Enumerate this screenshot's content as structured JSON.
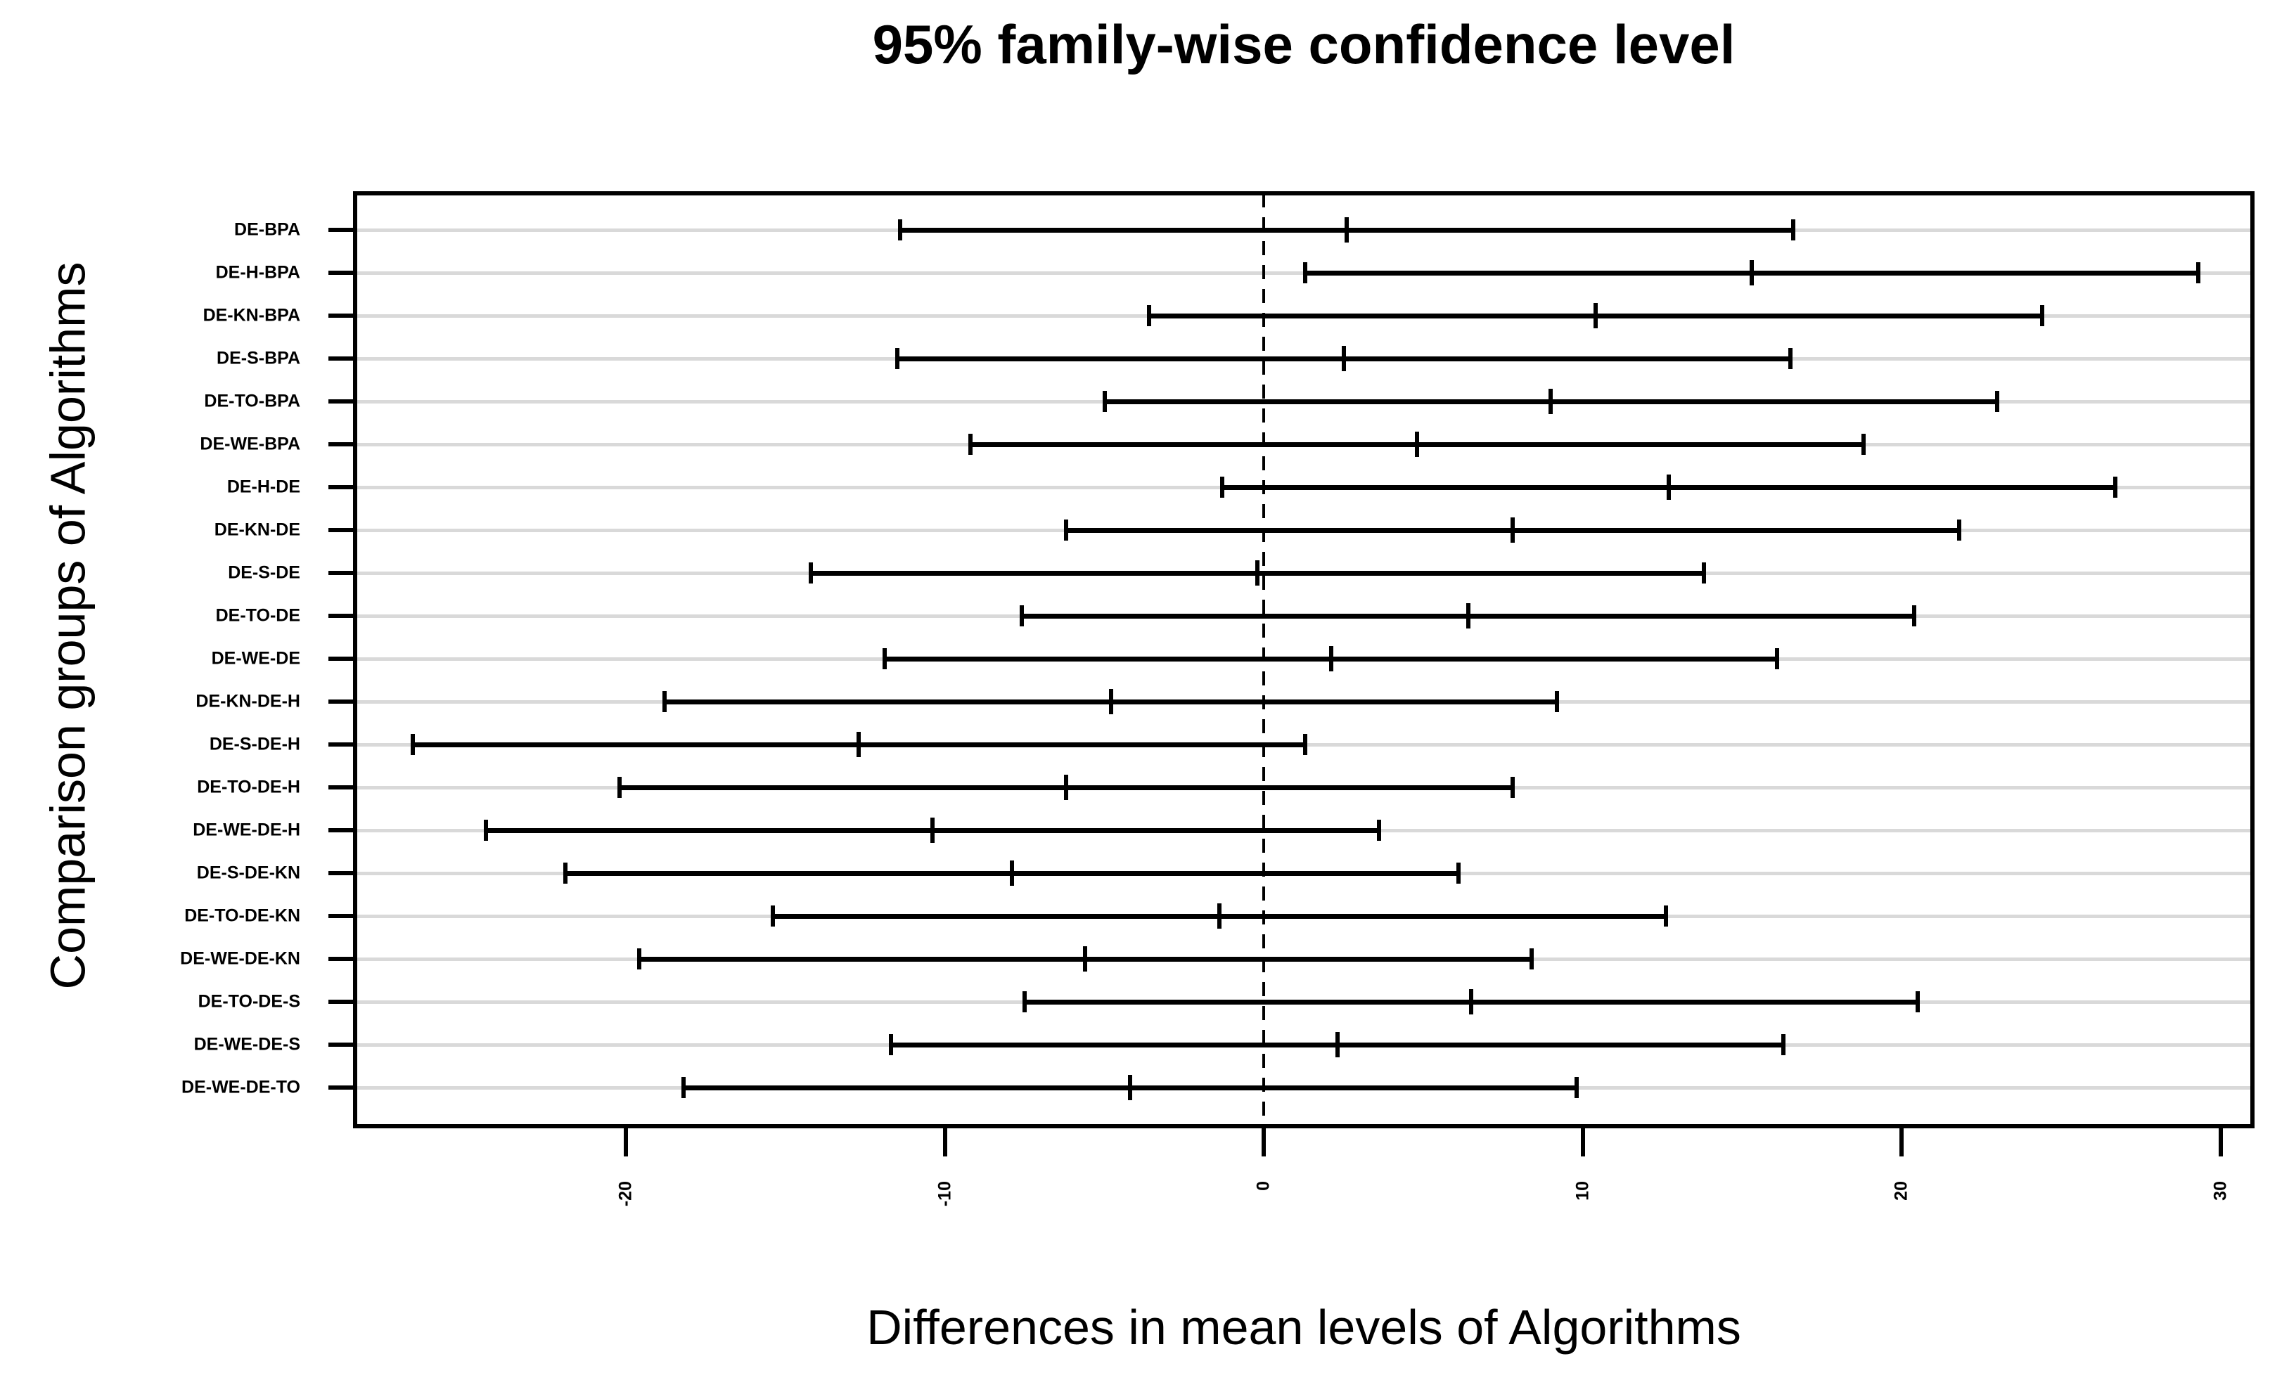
{
  "title": "95% family-wise confidence level",
  "colors": {
    "foreground": "#000000",
    "gridline": "#d9d9d9",
    "background": "#ffffff"
  },
  "chart_data": {
    "type": "scatter",
    "subtype": "tukey-hsd-confidence-interval-plot",
    "title": "95% family-wise confidence level",
    "xlabel": "Differences in mean levels of Algorithms",
    "ylabel": "Comparison groups of Algorithms",
    "categories": [
      "DE-BPA",
      "DE-H-BPA",
      "DE-KN-BPA",
      "DE-S-BPA",
      "DE-TO-BPA",
      "DE-WE-BPA",
      "DE-H-DE",
      "DE-KN-DE",
      "DE-S-DE",
      "DE-TO-DE",
      "DE-WE-DE",
      "DE-KN-DE-H",
      "DE-S-DE-H",
      "DE-TO-DE-H",
      "DE-WE-DE-H",
      "DE-S-DE-KN",
      "DE-TO-DE-KN",
      "DE-WE-DE-KN",
      "DE-TO-DE-S",
      "DE-WE-DE-S",
      "DE-WE-DE-TO"
    ],
    "series": [
      {
        "name": "diff",
        "values": [
          2.6,
          15.3,
          10.4,
          2.5,
          9.0,
          4.8,
          12.7,
          7.8,
          -0.2,
          6.4,
          2.1,
          -4.8,
          -12.7,
          -6.2,
          -10.4,
          -7.9,
          -1.4,
          -5.6,
          6.5,
          2.3,
          -4.2
        ]
      },
      {
        "name": "lwr",
        "values": [
          -11.4,
          1.3,
          -3.6,
          -11.5,
          -5.0,
          -9.2,
          -1.3,
          -6.2,
          -14.2,
          -7.6,
          -11.9,
          -18.8,
          -26.7,
          -20.2,
          -24.4,
          -21.9,
          -15.4,
          -19.6,
          -7.5,
          -11.7,
          -18.2
        ]
      },
      {
        "name": "upr",
        "values": [
          16.6,
          29.3,
          24.4,
          16.5,
          23.0,
          18.8,
          26.7,
          21.8,
          13.8,
          20.4,
          16.1,
          9.2,
          1.3,
          7.8,
          3.6,
          6.1,
          12.6,
          8.4,
          20.5,
          16.3,
          9.8
        ]
      }
    ],
    "x_ticks": [
      -20,
      -10,
      0,
      10,
      20,
      30
    ],
    "xlim": [
      -28.5,
      31.0
    ],
    "reference_line_x": 0,
    "grid": "horizontal-per-row-light-gray",
    "legend": "none"
  }
}
